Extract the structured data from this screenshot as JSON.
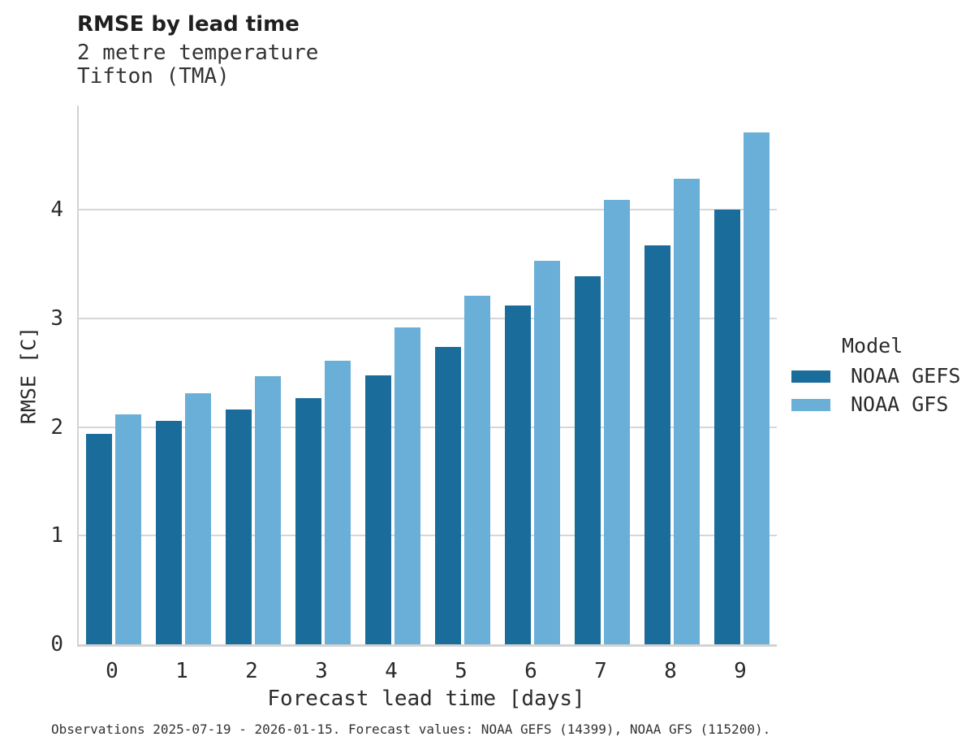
{
  "chart_data": {
    "type": "bar",
    "title": "RMSE by lead time",
    "subtitle_lines": [
      "2 metre temperature",
      "Tifton (TMA)"
    ],
    "xlabel": "Forecast lead time [days]",
    "ylabel": "RMSE [C]",
    "categories": [
      "0",
      "1",
      "2",
      "3",
      "4",
      "5",
      "6",
      "7",
      "8",
      "9"
    ],
    "series": [
      {
        "name": "NOAA GEFS",
        "color": "#1a6c9b",
        "values": [
          1.94,
          2.06,
          2.16,
          2.27,
          2.48,
          2.74,
          3.12,
          3.39,
          3.67,
          4.0
        ]
      },
      {
        "name": "NOAA GFS",
        "color": "#69afd7",
        "values": [
          2.12,
          2.31,
          2.47,
          2.61,
          2.92,
          3.21,
          3.53,
          4.09,
          4.29,
          4.71
        ]
      }
    ],
    "ylim": [
      0,
      4.96
    ],
    "yticks": [
      0,
      1,
      2,
      3,
      4
    ],
    "grid": true,
    "legend_title": "Model",
    "legend_position": "right",
    "caption": "Observations 2025-07-19 - 2026-01-15. Forecast values: NOAA GEFS (14399), NOAA GFS (115200)."
  }
}
